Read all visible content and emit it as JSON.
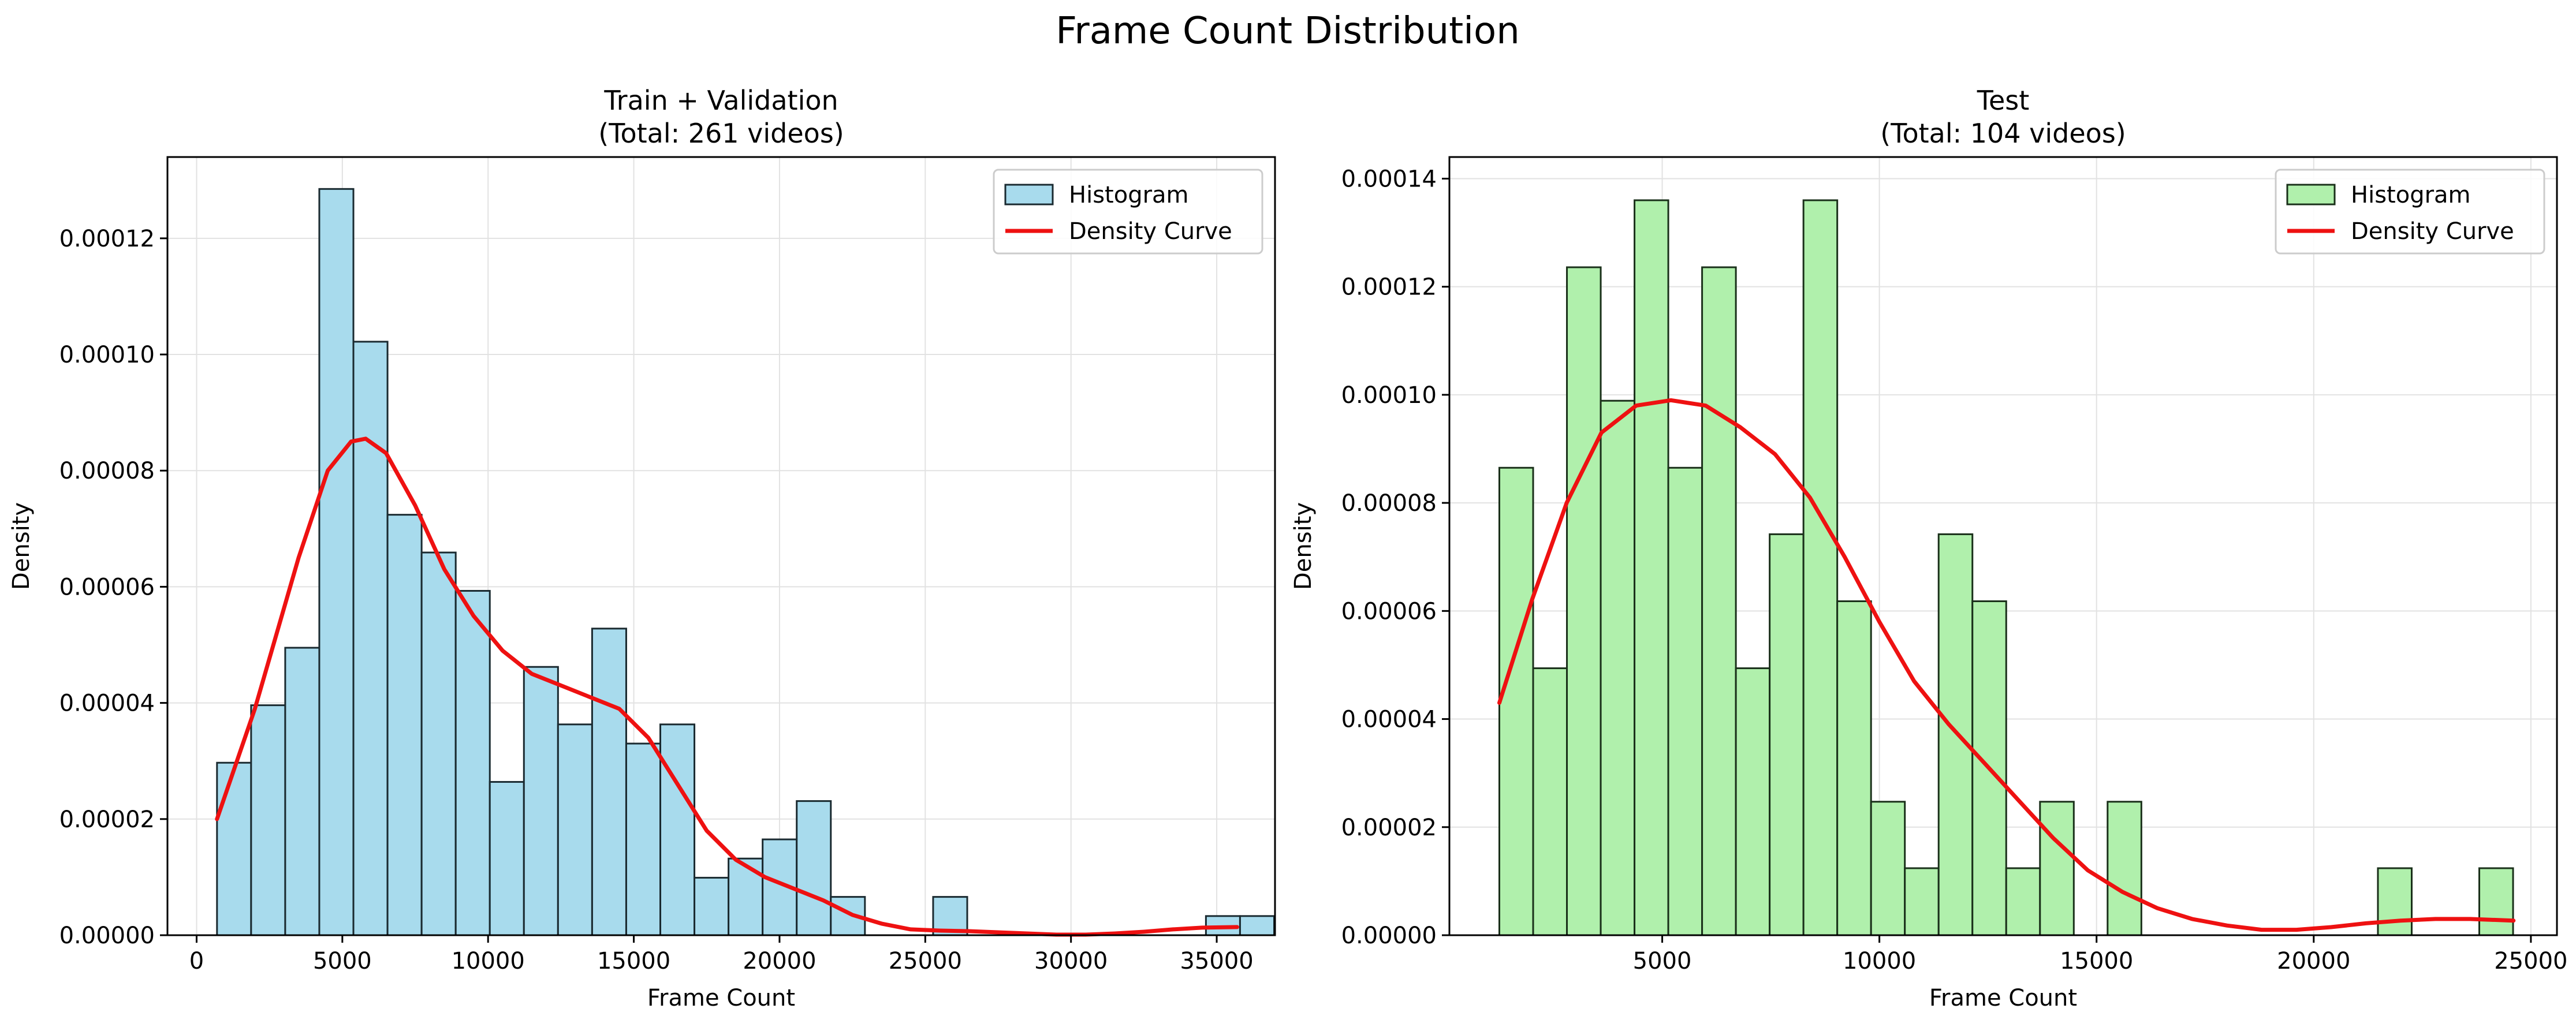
{
  "figure": {
    "suptitle": "Frame Count Distribution"
  },
  "chart_data": [
    {
      "type": "bar",
      "title_line1": "Train + Validation",
      "title_line2": "(Total: 261 videos)",
      "xlabel": "Frame Count",
      "ylabel": "Density",
      "xlim": [
        -1000,
        37000
      ],
      "ylim": [
        0,
        0.000134
      ],
      "xticks": [
        0,
        5000,
        10000,
        15000,
        20000,
        25000,
        30000,
        35000
      ],
      "yticks": [
        0,
        2e-05,
        4e-05,
        6e-05,
        8e-05,
        0.0001,
        0.00012
      ],
      "ytick_labels": [
        "0.00000",
        "0.00002",
        "0.00004",
        "0.00006",
        "0.00008",
        "0.00010",
        "0.00012"
      ],
      "grid": true,
      "legend_position": "upper-right",
      "legend": [
        "Histogram",
        "Density Curve"
      ],
      "histogram": {
        "color": "#a8dbed",
        "edge_color": "#1a2a30",
        "bin_start": 700,
        "bin_width": 1170,
        "values": [
          2.97e-05,
          3.96e-05,
          4.95e-05,
          0.0001285,
          0.0001022,
          7.24e-05,
          6.59e-05,
          5.93e-05,
          2.64e-05,
          4.62e-05,
          3.63e-05,
          5.28e-05,
          3.3e-05,
          3.63e-05,
          9.9e-06,
          1.32e-05,
          1.65e-05,
          2.31e-05,
          6.6e-06,
          0,
          0,
          6.6e-06,
          0,
          0,
          0,
          0,
          0,
          0,
          0,
          3.3e-06,
          3.3e-06
        ]
      },
      "density_curve": {
        "color": "#ee1111",
        "x": [
          700,
          2000,
          3500,
          4500,
          5300,
          5800,
          6500,
          7500,
          8500,
          9500,
          10500,
          11500,
          12500,
          13500,
          14500,
          15500,
          16500,
          17500,
          18500,
          19500,
          20500,
          21500,
          22500,
          23500,
          24500,
          25500,
          26500,
          27500,
          28500,
          29500,
          30500,
          31500,
          32500,
          33500,
          34500,
          35700
        ],
        "y": [
          2e-05,
          3.9e-05,
          6.5e-05,
          8e-05,
          8.5e-05,
          8.55e-05,
          8.3e-05,
          7.4e-05,
          6.3e-05,
          5.5e-05,
          4.9e-05,
          4.5e-05,
          4.3e-05,
          4.1e-05,
          3.9e-05,
          3.4e-05,
          2.6e-05,
          1.8e-05,
          1.3e-05,
          1e-05,
          8e-06,
          6e-06,
          3.5e-06,
          2e-06,
          1e-06,
          8e-07,
          7e-07,
          5e-07,
          3e-07,
          1e-07,
          1e-07,
          3e-07,
          6e-07,
          1e-06,
          1.3e-06,
          1.4e-06
        ]
      }
    },
    {
      "type": "bar",
      "title_line1": "Test",
      "title_line2": "(Total: 104 videos)",
      "xlabel": "Frame Count",
      "ylabel": "Density",
      "xlim": [
        100,
        25600
      ],
      "ylim": [
        0,
        0.000144
      ],
      "xticks": [
        5000,
        10000,
        15000,
        20000,
        25000
      ],
      "yticks": [
        0,
        2e-05,
        4e-05,
        6e-05,
        8e-05,
        0.0001,
        0.00012,
        0.00014
      ],
      "ytick_labels": [
        "0.00000",
        "0.00002",
        "0.00004",
        "0.00006",
        "0.00008",
        "0.00010",
        "0.00012",
        "0.00014"
      ],
      "grid": true,
      "legend_position": "upper-right",
      "legend": [
        "Histogram",
        "Density Curve"
      ],
      "histogram": {
        "color": "#b0f0ac",
        "edge_color": "#1a301a",
        "bin_start": 1250,
        "bin_width": 778,
        "values": [
          8.65e-05,
          4.94e-05,
          0.0001236,
          9.89e-05,
          0.000136,
          8.65e-05,
          0.0001236,
          4.94e-05,
          7.42e-05,
          0.000136,
          6.18e-05,
          2.47e-05,
          1.24e-05,
          7.42e-05,
          6.18e-05,
          1.24e-05,
          2.47e-05,
          0,
          2.47e-05,
          0,
          0,
          0,
          0,
          0,
          0,
          0,
          1.24e-05,
          0,
          0,
          1.24e-05
        ]
      },
      "density_curve": {
        "color": "#ee1111",
        "x": [
          1250,
          2000,
          2800,
          3600,
          4400,
          5200,
          6000,
          6800,
          7600,
          8400,
          9200,
          10000,
          10800,
          11600,
          12400,
          13200,
          14000,
          14800,
          15600,
          16400,
          17200,
          18000,
          18800,
          19600,
          20400,
          21200,
          22000,
          22800,
          23600,
          24600
        ],
        "y": [
          4.3e-05,
          6.2e-05,
          8e-05,
          9.3e-05,
          9.8e-05,
          9.9e-05,
          9.8e-05,
          9.4e-05,
          8.9e-05,
          8.1e-05,
          7e-05,
          5.8e-05,
          4.7e-05,
          3.9e-05,
          3.2e-05,
          2.5e-05,
          1.8e-05,
          1.2e-05,
          8e-06,
          5e-06,
          3e-06,
          1.8e-06,
          1e-06,
          1e-06,
          1.5e-06,
          2.2e-06,
          2.7e-06,
          3e-06,
          3e-06,
          2.7e-06
        ]
      }
    }
  ]
}
